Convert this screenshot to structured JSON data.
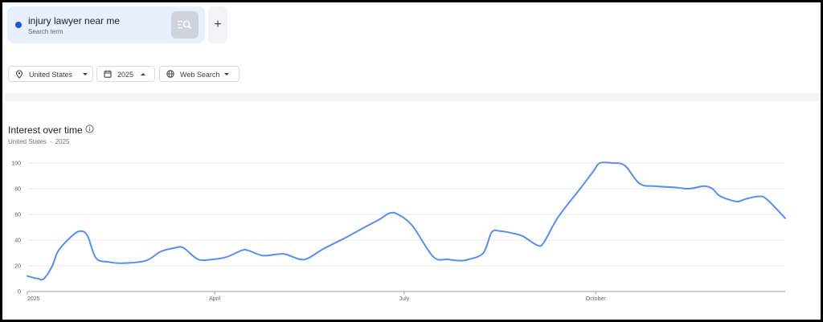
{
  "search_term": {
    "name": "injury lawyer near me",
    "subtitle": "Search term",
    "color": "#1a56db"
  },
  "filters": {
    "geo": "United States",
    "year": "2025",
    "property": "Web Search"
  },
  "chart_header": {
    "title": "Interest over time",
    "geo": "United States",
    "separator": "·",
    "year": "2025"
  },
  "chart_data": {
    "type": "line",
    "title": "Interest over time",
    "xlabel": "",
    "ylabel": "",
    "x_start": "2025-01-01",
    "x_end": "2025-12-31",
    "x_ticks": [
      {
        "date": "2025-01-01",
        "label": "2025"
      },
      {
        "date": "2025-04-01",
        "label": "April"
      },
      {
        "date": "2025-07-01",
        "label": "July"
      },
      {
        "date": "2025-10-01",
        "label": "October"
      }
    ],
    "y_ticks": [
      0,
      20,
      40,
      60,
      80,
      100
    ],
    "ylim": [
      0,
      100
    ],
    "grid": true,
    "line_color": "#5b8def",
    "series": [
      {
        "values": [
          [
            "2025-01-01",
            12
          ],
          [
            "2025-01-06",
            10
          ],
          [
            "2025-01-09",
            10
          ],
          [
            "2025-01-13",
            20
          ],
          [
            "2025-01-16",
            32
          ],
          [
            "2025-01-23",
            44
          ],
          [
            "2025-01-27",
            47
          ],
          [
            "2025-01-30",
            43
          ],
          [
            "2025-02-03",
            26
          ],
          [
            "2025-02-09",
            23
          ],
          [
            "2025-02-16",
            22
          ],
          [
            "2025-02-27",
            24
          ],
          [
            "2025-03-06",
            31
          ],
          [
            "2025-03-13",
            34
          ],
          [
            "2025-03-17",
            34
          ],
          [
            "2025-03-24",
            25
          ],
          [
            "2025-03-31",
            25
          ],
          [
            "2025-04-07",
            27
          ],
          [
            "2025-04-14",
            32
          ],
          [
            "2025-04-17",
            32
          ],
          [
            "2025-04-24",
            28
          ],
          [
            "2025-05-01",
            29
          ],
          [
            "2025-05-05",
            29
          ],
          [
            "2025-05-12",
            25
          ],
          [
            "2025-05-16",
            26
          ],
          [
            "2025-05-23",
            33
          ],
          [
            "2025-06-03",
            42
          ],
          [
            "2025-06-12",
            50
          ],
          [
            "2025-06-19",
            56
          ],
          [
            "2025-06-24",
            61
          ],
          [
            "2025-06-28",
            60
          ],
          [
            "2025-07-05",
            51
          ],
          [
            "2025-07-15",
            27
          ],
          [
            "2025-07-22",
            25
          ],
          [
            "2025-07-28",
            24
          ],
          [
            "2025-08-01",
            25
          ],
          [
            "2025-08-08",
            30
          ],
          [
            "2025-08-12",
            46
          ],
          [
            "2025-08-16",
            47
          ],
          [
            "2025-08-23",
            45
          ],
          [
            "2025-08-27",
            43
          ],
          [
            "2025-09-03",
            36
          ],
          [
            "2025-09-06",
            38
          ],
          [
            "2025-09-13",
            58
          ],
          [
            "2025-09-24",
            81
          ],
          [
            "2025-09-30",
            94
          ],
          [
            "2025-10-03",
            100
          ],
          [
            "2025-10-09",
            100
          ],
          [
            "2025-10-15",
            98
          ],
          [
            "2025-10-22",
            84
          ],
          [
            "2025-10-29",
            82
          ],
          [
            "2025-11-08",
            81
          ],
          [
            "2025-11-15",
            80
          ],
          [
            "2025-11-22",
            82
          ],
          [
            "2025-11-26",
            80
          ],
          [
            "2025-11-29",
            75
          ],
          [
            "2025-12-03",
            72
          ],
          [
            "2025-12-08",
            70
          ],
          [
            "2025-12-12",
            72
          ],
          [
            "2025-12-18",
            74
          ],
          [
            "2025-12-22",
            72
          ],
          [
            "2025-12-31",
            57
          ]
        ]
      }
    ]
  }
}
